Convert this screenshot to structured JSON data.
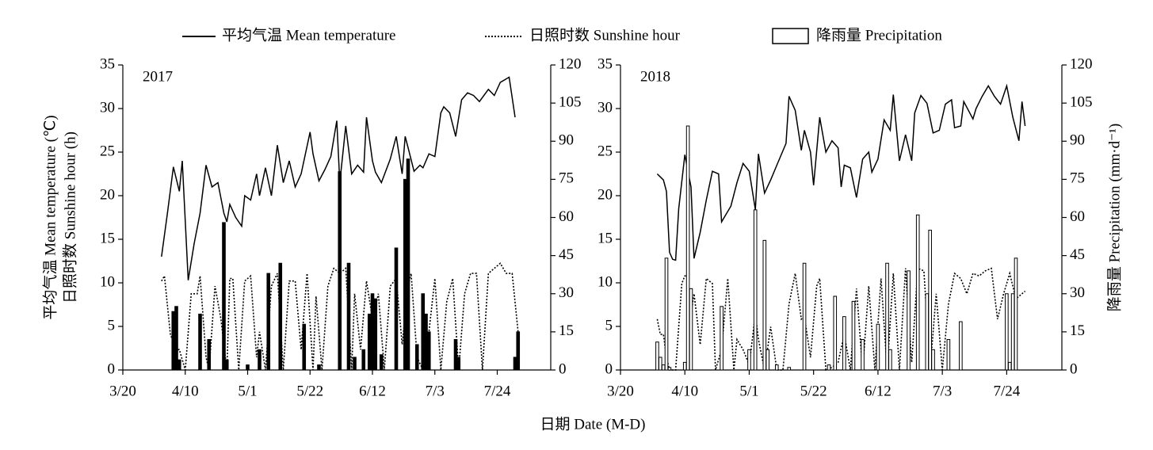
{
  "chart_data": [
    {
      "type": "line",
      "annotation": "2017",
      "ylabel": [
        "平均气温 Mean temperature (℃)",
        "日照时数 Sunshine hour (h)"
      ],
      "xlim": [
        "3/20",
        "8/11"
      ],
      "xticks": [
        "3/20",
        "4/10",
        "5/1",
        "5/22",
        "6/12",
        "7/3",
        "7/24"
      ],
      "ylim": [
        0,
        35
      ],
      "yticks": [
        0,
        5,
        10,
        15,
        20,
        25,
        30,
        35
      ],
      "y2lim": [
        0,
        120
      ],
      "y2ticks": [
        0,
        15,
        30,
        45,
        60,
        75,
        90,
        105,
        120
      ],
      "series": [
        {
          "name": "平均气温 Mean temperature",
          "style": "solid",
          "color": "#000000",
          "axis": "y",
          "x": [
            "4/2",
            "4/4",
            "4/6",
            "4/8",
            "4/9",
            "4/11",
            "4/13",
            "4/15",
            "4/17",
            "4/19",
            "4/21",
            "4/23",
            "4/24",
            "4/25",
            "4/27",
            "4/29",
            "4/30",
            "5/2",
            "5/4",
            "5/5",
            "5/7",
            "5/9",
            "5/11",
            "5/13",
            "5/15",
            "5/17",
            "5/19",
            "5/22",
            "5/23",
            "5/25",
            "5/27",
            "5/29",
            "5/31",
            "6/1",
            "6/3",
            "6/5",
            "6/7",
            "6/9",
            "6/10",
            "6/12",
            "6/13",
            "6/15",
            "6/18",
            "6/20",
            "6/22",
            "6/23",
            "6/24",
            "6/26",
            "6/28",
            "6/29",
            "7/1",
            "7/3",
            "7/5",
            "7/6",
            "7/8",
            "7/10",
            "7/12",
            "7/14",
            "7/16",
            "7/18",
            "7/21",
            "7/23",
            "7/25",
            "7/28",
            "7/30"
          ],
          "values": [
            13,
            18,
            23.3,
            20.5,
            24,
            10.3,
            14.5,
            18,
            23.5,
            21,
            21.5,
            18,
            17,
            19,
            17.5,
            16.5,
            20,
            19.5,
            22.5,
            20,
            23.2,
            20,
            25.8,
            21.5,
            24,
            21,
            22.5,
            27.3,
            24.8,
            21.7,
            23,
            24.5,
            28.6,
            21.5,
            28,
            22.5,
            23.5,
            22.7,
            29,
            24,
            22.7,
            21.5,
            24.2,
            26.8,
            22.5,
            26.8,
            25.5,
            22.8,
            23.5,
            23.2,
            24.8,
            24.5,
            29.5,
            30.2,
            29.5,
            26.8,
            31,
            31.8,
            31.5,
            30.8,
            32.2,
            31.5,
            33,
            33.6,
            29
          ]
        },
        {
          "name": "日照时数 Sunshine hour",
          "style": "dotted",
          "color": "#000000",
          "axis": "y2",
          "x": [
            "4/2",
            "4/3",
            "4/5",
            "4/7",
            "4/8",
            "4/10",
            "4/12",
            "4/14",
            "4/15",
            "4/17",
            "4/18",
            "4/20",
            "4/22",
            "4/24",
            "4/25",
            "4/26",
            "4/28",
            "4/30",
            "5/2",
            "5/4",
            "5/5",
            "5/7",
            "5/9",
            "5/11",
            "5/13",
            "5/15",
            "5/17",
            "5/19",
            "5/21",
            "5/23",
            "5/24",
            "5/26",
            "5/28",
            "5/30",
            "6/1",
            "6/3",
            "6/5",
            "6/6",
            "6/8",
            "6/10",
            "6/12",
            "6/14",
            "6/16",
            "6/18",
            "6/20",
            "6/22",
            "6/24",
            "6/25",
            "6/27",
            "6/29",
            "7/1",
            "7/3",
            "7/5",
            "7/7",
            "7/9",
            "7/11",
            "7/13",
            "7/15",
            "7/17",
            "7/19",
            "7/21",
            "7/23",
            "7/25",
            "7/27",
            "7/29",
            "7/31"
          ],
          "values": [
            35,
            37,
            14,
            8,
            8,
            0,
            30,
            30,
            37,
            5,
            0,
            33,
            20,
            0,
            36,
            36,
            0,
            35,
            37,
            5,
            15,
            0,
            33,
            38,
            0,
            35,
            35,
            8,
            38,
            0,
            29,
            0,
            33,
            40,
            38,
            40,
            0,
            30,
            8,
            35,
            20,
            30,
            0,
            33,
            36,
            10,
            33,
            38,
            5,
            0,
            15,
            36,
            0,
            27,
            36,
            0,
            30,
            38,
            38,
            0,
            38,
            40,
            42,
            38,
            38,
            15
          ]
        },
        {
          "name": "降雨量 Precipitation",
          "style": "bar",
          "color": "#000000",
          "fill": "#000000",
          "axis": "y2",
          "x": [
            "4/6",
            "4/7",
            "4/8",
            "4/15",
            "4/18",
            "4/23",
            "4/24",
            "5/1",
            "5/5",
            "5/8",
            "5/12",
            "5/20",
            "5/25",
            "6/1",
            "6/4",
            "6/6",
            "6/9",
            "6/11",
            "6/12",
            "6/13",
            "6/15",
            "6/20",
            "6/23",
            "6/24",
            "6/27",
            "6/29",
            "6/30",
            "7/1",
            "7/10",
            "7/11",
            "7/30",
            "7/31"
          ],
          "values": [
            23,
            25,
            4,
            22,
            12,
            58,
            4,
            2,
            8,
            38,
            42,
            18,
            2,
            78,
            42,
            5,
            8,
            22,
            30,
            28,
            6,
            48,
            75,
            83,
            10,
            30,
            22,
            15,
            12,
            5,
            5,
            15
          ]
        }
      ]
    },
    {
      "type": "line",
      "annotation": "2018",
      "y2label": "降雨量 Precipitation (mm·d⁻¹)",
      "xlim": [
        "3/20",
        "8/11"
      ],
      "xticks": [
        "3/20",
        "4/10",
        "5/1",
        "5/22",
        "6/12",
        "7/3",
        "7/24"
      ],
      "ylim": [
        0,
        35
      ],
      "yticks": [
        0,
        5,
        10,
        15,
        20,
        25,
        30,
        35
      ],
      "y2lim": [
        0,
        120
      ],
      "y2ticks": [
        0,
        15,
        30,
        45,
        60,
        75,
        90,
        105,
        120
      ],
      "series": [
        {
          "style": "solid",
          "color": "#000000",
          "axis": "y",
          "x": [
            "4/1",
            "4/3",
            "4/4",
            "4/5",
            "4/6",
            "4/7",
            "4/8",
            "4/10",
            "4/12",
            "4/13",
            "4/15",
            "4/17",
            "4/19",
            "4/21",
            "4/22",
            "4/25",
            "4/27",
            "4/29",
            "5/1",
            "5/3",
            "5/4",
            "5/6",
            "5/8",
            "5/10",
            "5/13",
            "5/14",
            "5/16",
            "5/18",
            "5/19",
            "5/21",
            "5/22",
            "5/24",
            "5/26",
            "5/28",
            "5/30",
            "5/31",
            "6/1",
            "6/3",
            "6/5",
            "6/7",
            "6/9",
            "6/10",
            "6/12",
            "6/14",
            "6/16",
            "6/17",
            "6/19",
            "6/21",
            "6/23",
            "6/24",
            "6/26",
            "6/28",
            "6/30",
            "7/2",
            "7/4",
            "7/6",
            "7/7",
            "7/9",
            "7/10",
            "7/13",
            "7/14",
            "7/16",
            "7/18",
            "7/20",
            "7/22",
            "7/24",
            "7/26",
            "7/28",
            "7/29",
            "7/30"
          ],
          "values": [
            22.5,
            21.8,
            20.5,
            13.5,
            12.7,
            12.6,
            18.5,
            24.7,
            21,
            12.8,
            15.8,
            19.5,
            22.8,
            22.5,
            17,
            18.8,
            21.5,
            23.7,
            22.8,
            18.4,
            24.8,
            20.3,
            21.8,
            23.5,
            26,
            31.4,
            29.8,
            25.2,
            27.5,
            25,
            21.2,
            29,
            25,
            26.3,
            25.5,
            21,
            23.5,
            23.2,
            19.8,
            24.2,
            25,
            22.7,
            24.2,
            28.7,
            27.5,
            31.6,
            24,
            27,
            24,
            29.5,
            31.5,
            30.6,
            27.2,
            27.5,
            30.5,
            31,
            27.8,
            28,
            30.8,
            28.8,
            30,
            31.4,
            32.6,
            31.4,
            30.5,
            32.6,
            29,
            26.3,
            30.8,
            28
          ]
        },
        {
          "style": "dotted",
          "color": "#000000",
          "axis": "y2",
          "x": [
            "4/1",
            "4/2",
            "4/3",
            "4/4",
            "4/5",
            "4/7",
            "4/9",
            "4/10",
            "4/11",
            "4/12",
            "4/13",
            "4/15",
            "4/17",
            "4/19",
            "4/20",
            "4/22",
            "4/24",
            "4/26",
            "4/27",
            "4/29",
            "5/1",
            "5/3",
            "5/4",
            "5/6",
            "5/8",
            "5/10",
            "5/12",
            "5/14",
            "5/16",
            "5/18",
            "5/19",
            "5/21",
            "5/23",
            "5/24",
            "5/26",
            "5/28",
            "5/30",
            "6/1",
            "6/3",
            "6/5",
            "6/7",
            "6/9",
            "6/11",
            "6/13",
            "6/15",
            "6/17",
            "6/19",
            "6/21",
            "6/23",
            "6/25",
            "6/27",
            "6/29",
            "7/1",
            "7/3",
            "7/5",
            "7/7",
            "7/9",
            "7/11",
            "7/13",
            "7/15",
            "7/17",
            "7/19",
            "7/21",
            "7/23",
            "7/25",
            "7/27",
            "7/30"
          ],
          "values": [
            20,
            14,
            14,
            5,
            0,
            0,
            34,
            37,
            37,
            22,
            30,
            10,
            36,
            34,
            0,
            8,
            36,
            0,
            12,
            8,
            2,
            22,
            12,
            0,
            17,
            0,
            0,
            26,
            38,
            20,
            21,
            5,
            33,
            36,
            0,
            1,
            3,
            14,
            0,
            32,
            0,
            33,
            0,
            36,
            0,
            38,
            0,
            40,
            3,
            40,
            39,
            0,
            30,
            0,
            26,
            38,
            36,
            30,
            38,
            37,
            39,
            40,
            20,
            30,
            38,
            28,
            31
          ]
        },
        {
          "style": "bar",
          "color": "#000000",
          "fill": "#ffffff",
          "axis": "y2",
          "x": [
            "4/1",
            "4/2",
            "4/3",
            "4/4",
            "4/5",
            "4/10",
            "4/11",
            "4/12",
            "4/22",
            "5/1",
            "5/3",
            "5/6",
            "5/7",
            "5/10",
            "5/14",
            "5/19",
            "5/27",
            "5/29",
            "6/1",
            "6/4",
            "6/7",
            "6/12",
            "6/15",
            "6/16",
            "6/22",
            "6/25",
            "6/28",
            "6/29",
            "6/30",
            "7/5",
            "7/9",
            "7/24",
            "7/25",
            "7/26",
            "7/27"
          ],
          "values": [
            11,
            5,
            2,
            44,
            1,
            3,
            96,
            32,
            25,
            8,
            63,
            51,
            8,
            2,
            1,
            42,
            2,
            29,
            21,
            27,
            12,
            18,
            42,
            8,
            39,
            61,
            30,
            55,
            8,
            12,
            19,
            30,
            3,
            30,
            44
          ]
        }
      ]
    }
  ],
  "xlabel": "日期 Date (M-D)"
}
